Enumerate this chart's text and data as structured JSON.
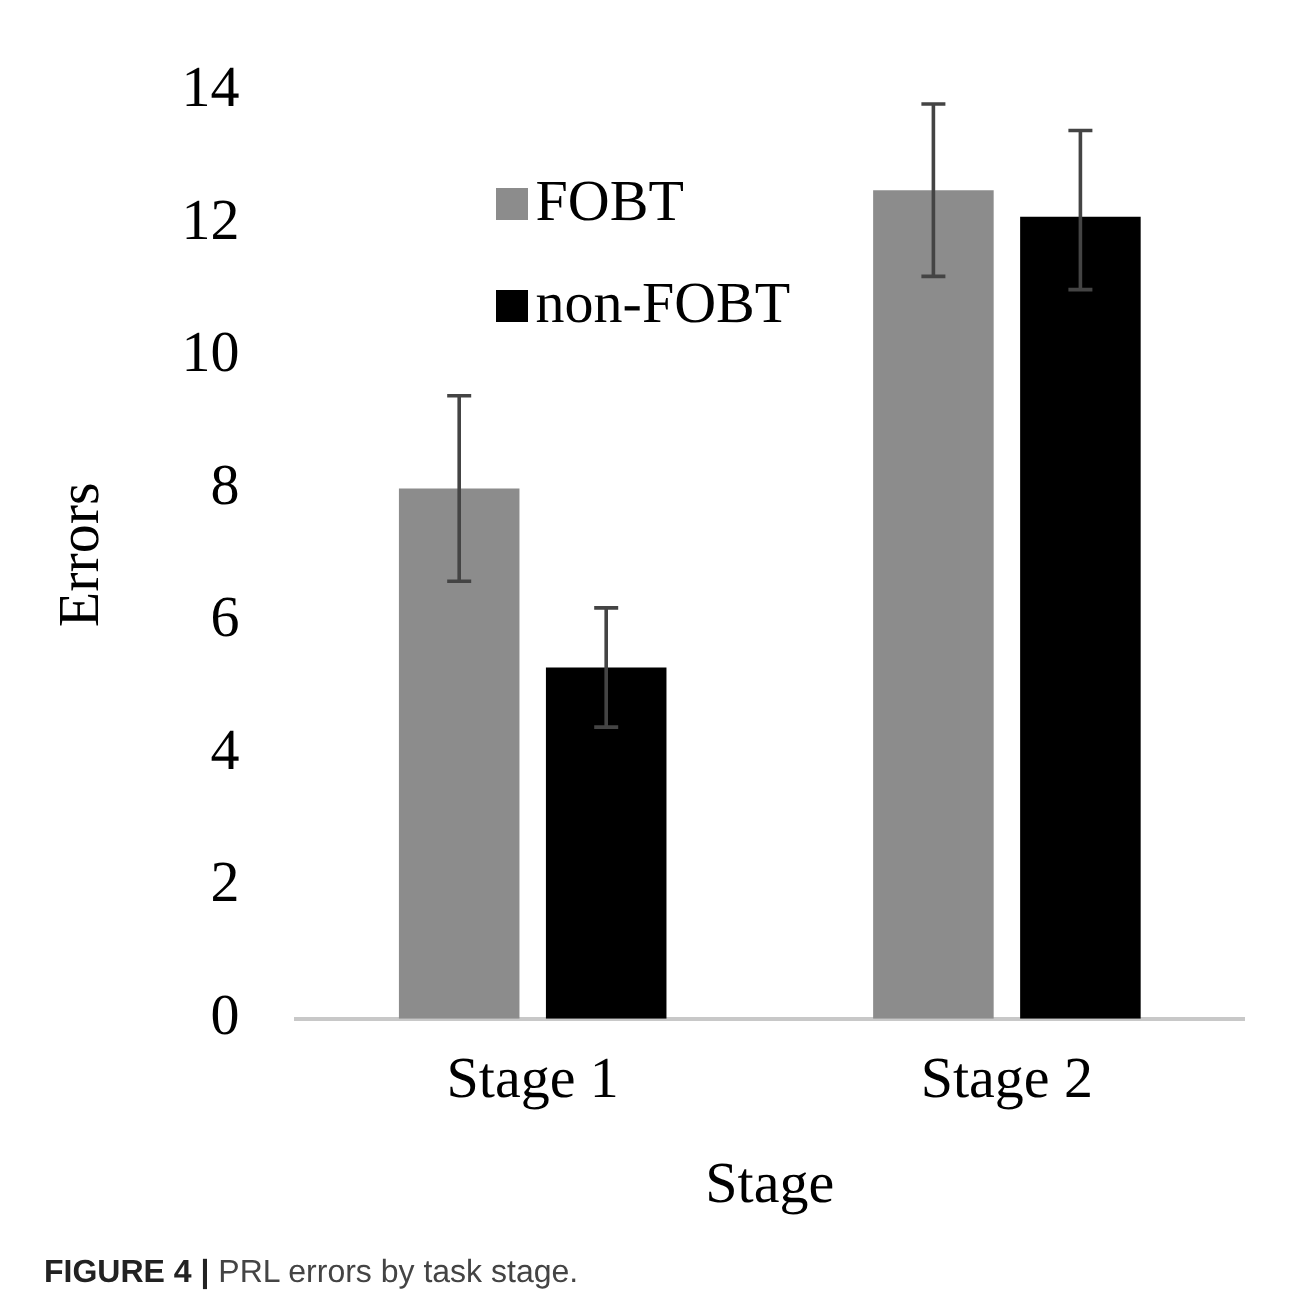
{
  "chart_data": {
    "type": "bar",
    "xlabel": "Stage",
    "ylabel": "Errors",
    "categories": [
      "Stage 1",
      "Stage 2"
    ],
    "series": [
      {
        "name": "FOBT",
        "color": "#8c8c8c",
        "values": [
          8.0,
          12.5
        ],
        "errors": [
          [
            6.6,
            9.4
          ],
          [
            11.2,
            13.8
          ]
        ]
      },
      {
        "name": "non-FOBT",
        "color": "#000000",
        "values": [
          5.3,
          12.1
        ],
        "errors": [
          [
            4.4,
            6.2
          ],
          [
            11.0,
            13.4
          ]
        ]
      }
    ],
    "ylim": [
      0,
      14
    ],
    "yticks": [
      0,
      2,
      4,
      6,
      8,
      10,
      12,
      14
    ],
    "grid": false,
    "legend": "top left",
    "annotations": [
      "FIGURE 4 | PRL errors by task stage."
    ]
  }
}
